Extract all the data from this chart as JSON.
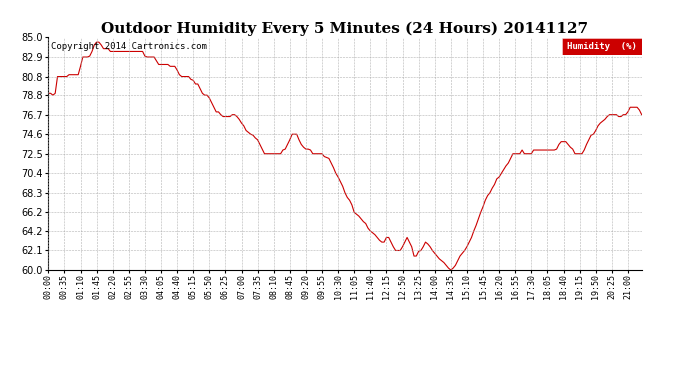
{
  "title": "Outdoor Humidity Every 5 Minutes (24 Hours) 20141127",
  "copyright": "Copyright 2014 Cartronics.com",
  "legend_label": "Humidity  (%)",
  "legend_bg": "#cc0000",
  "line_color": "#cc0000",
  "bg_color": "#ffffff",
  "grid_color": "#aaaaaa",
  "ylim": [
    60.0,
    85.0
  ],
  "yticks": [
    60.0,
    62.1,
    64.2,
    66.2,
    68.3,
    70.4,
    72.5,
    74.6,
    76.7,
    78.8,
    80.8,
    82.9,
    85.0
  ],
  "xtick_interval": 7,
  "title_fontsize": 11,
  "axis_fontsize": 6.0,
  "humidity_data": [
    79.0,
    79.0,
    78.8,
    79.0,
    80.8,
    80.8,
    80.8,
    80.8,
    80.8,
    81.0,
    81.0,
    81.0,
    81.0,
    81.0,
    81.9,
    82.9,
    82.9,
    82.9,
    83.0,
    83.5,
    84.2,
    84.5,
    84.5,
    84.2,
    83.8,
    83.8,
    83.8,
    83.5,
    83.5,
    83.5,
    83.5,
    83.5,
    83.5,
    83.5,
    83.5,
    83.5,
    83.5,
    83.5,
    83.5,
    83.5,
    83.5,
    83.5,
    83.0,
    82.9,
    82.9,
    82.9,
    82.9,
    82.5,
    82.1,
    82.1,
    82.1,
    82.1,
    82.1,
    81.9,
    81.9,
    81.9,
    81.5,
    81.0,
    80.8,
    80.8,
    80.8,
    80.8,
    80.5,
    80.4,
    80.0,
    80.0,
    79.5,
    79.0,
    78.8,
    78.8,
    78.5,
    78.0,
    77.5,
    77.0,
    77.0,
    76.7,
    76.5,
    76.5,
    76.5,
    76.5,
    76.7,
    76.7,
    76.5,
    76.2,
    75.8,
    75.5,
    75.0,
    74.8,
    74.6,
    74.5,
    74.2,
    74.0,
    73.5,
    73.0,
    72.5,
    72.5,
    72.5,
    72.5,
    72.5,
    72.5,
    72.5,
    72.5,
    72.9,
    73.0,
    73.5,
    74.0,
    74.6,
    74.6,
    74.6,
    74.0,
    73.5,
    73.2,
    73.0,
    73.0,
    72.9,
    72.5,
    72.5,
    72.5,
    72.5,
    72.5,
    72.2,
    72.1,
    72.0,
    71.5,
    71.0,
    70.4,
    70.0,
    69.5,
    69.0,
    68.3,
    67.8,
    67.5,
    67.0,
    66.2,
    66.0,
    65.8,
    65.5,
    65.2,
    65.0,
    64.5,
    64.2,
    64.0,
    63.8,
    63.5,
    63.2,
    63.0,
    63.0,
    63.5,
    63.5,
    63.0,
    62.5,
    62.1,
    62.1,
    62.1,
    62.5,
    63.0,
    63.5,
    63.0,
    62.5,
    61.5,
    61.5,
    62.0,
    62.1,
    62.5,
    63.0,
    62.8,
    62.5,
    62.1,
    61.8,
    61.5,
    61.2,
    61.0,
    60.8,
    60.5,
    60.2,
    60.0,
    60.2,
    60.5,
    61.0,
    61.5,
    61.8,
    62.1,
    62.5,
    63.0,
    63.5,
    64.2,
    64.8,
    65.5,
    66.2,
    66.8,
    67.5,
    68.0,
    68.3,
    68.8,
    69.2,
    69.8,
    70.0,
    70.4,
    70.8,
    71.2,
    71.5,
    72.0,
    72.5,
    72.5,
    72.5,
    72.5,
    72.9,
    72.5,
    72.5,
    72.5,
    72.5,
    72.9,
    72.9,
    72.9,
    72.9,
    72.9,
    72.9,
    72.9,
    72.9,
    72.9,
    72.9,
    73.0,
    73.5,
    73.8,
    73.8,
    73.8,
    73.5,
    73.2,
    73.0,
    72.5,
    72.5,
    72.5,
    72.5,
    72.9,
    73.5,
    74.0,
    74.5,
    74.6,
    75.0,
    75.5,
    75.8,
    76.0,
    76.2,
    76.5,
    76.7,
    76.7,
    76.7,
    76.7,
    76.5,
    76.5,
    76.7,
    76.7,
    77.0,
    77.5,
    77.5,
    77.5,
    77.5,
    77.2,
    76.7
  ]
}
